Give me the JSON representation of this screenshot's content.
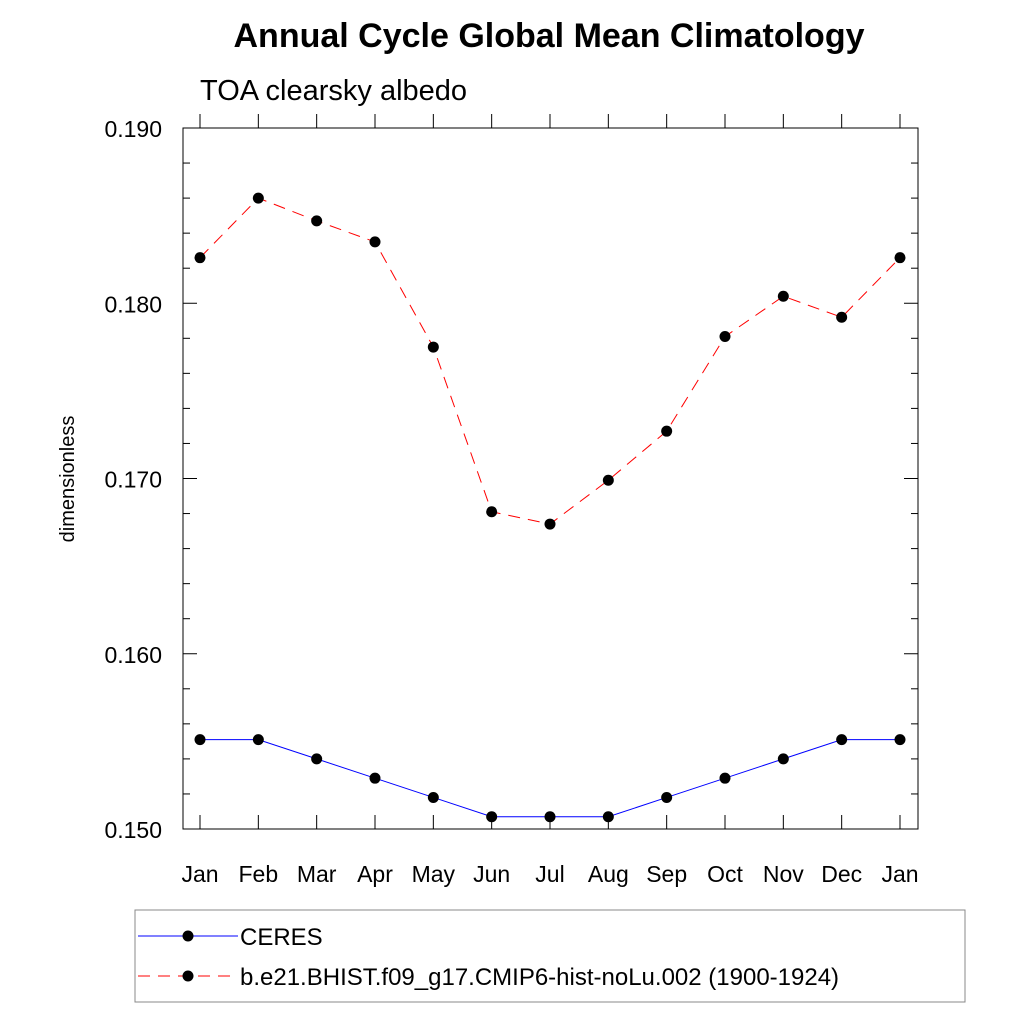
{
  "chart_data": {
    "type": "line",
    "title": "Annual Cycle Global Mean Climatology",
    "subtitle": "TOA clearsky albedo",
    "ylabel": "dimensionless",
    "xlabel": "",
    "categories": [
      "Jan",
      "Feb",
      "Mar",
      "Apr",
      "May",
      "Jun",
      "Jul",
      "Aug",
      "Sep",
      "Oct",
      "Nov",
      "Dec",
      "Jan"
    ],
    "ylim": [
      0.15,
      0.19
    ],
    "yticks": [
      "0.150",
      "0.160",
      "0.170",
      "0.180",
      "0.190"
    ],
    "grid": false,
    "legend_position": "bottom",
    "series": [
      {
        "name": "CERES",
        "color": "#0000ff",
        "line_style": "solid",
        "marker": "filled-circle",
        "values": [
          0.1551,
          0.1551,
          0.154,
          0.1529,
          0.1518,
          0.1507,
          0.1507,
          0.1507,
          0.1518,
          0.1529,
          0.154,
          0.1551,
          0.1551
        ]
      },
      {
        "name": "b.e21.BHIST.f09_g17.CMIP6-hist-noLu.002 (1900-1924)",
        "color": "#ff0000",
        "line_style": "dashed",
        "marker": "filled-circle",
        "values": [
          0.1826,
          0.186,
          0.1847,
          0.1835,
          0.1775,
          0.1681,
          0.1674,
          0.1699,
          0.1727,
          0.1781,
          0.1804,
          0.1792,
          0.1826
        ]
      }
    ]
  }
}
